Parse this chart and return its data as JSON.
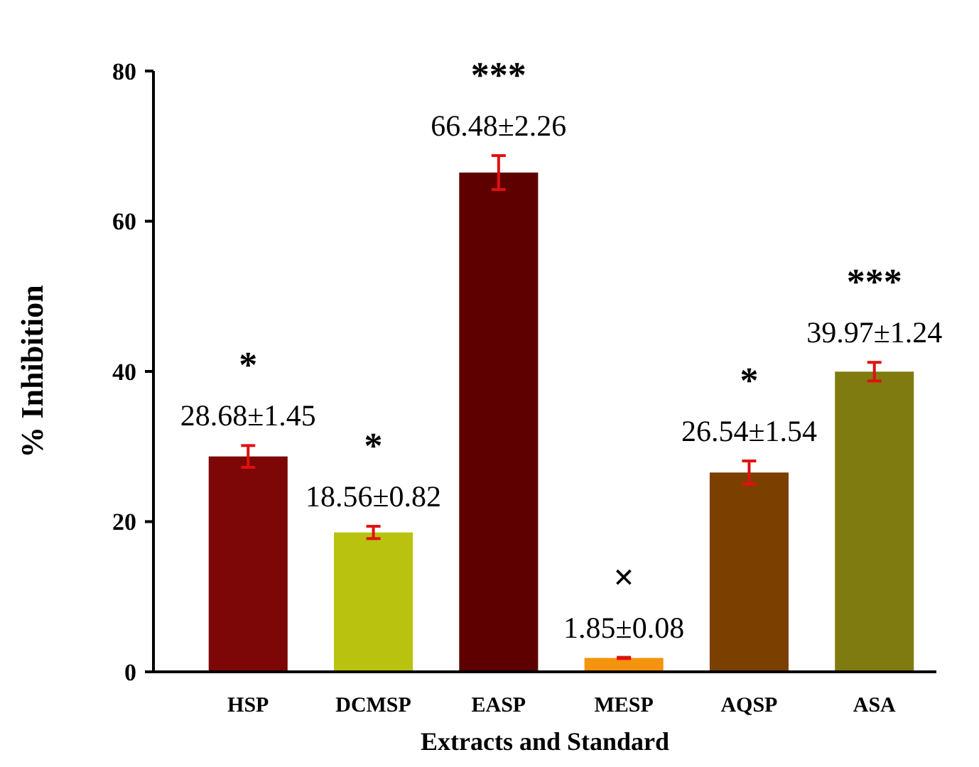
{
  "chart_data": {
    "type": "bar",
    "xlabel": "Extracts and Standard",
    "ylabel": "% Inhibition",
    "categories": [
      "HSP",
      "DCMSP",
      "EASP",
      "MESP",
      "AQSP",
      "ASA"
    ],
    "values": [
      28.68,
      18.56,
      66.48,
      1.85,
      26.54,
      39.97
    ],
    "errors": [
      1.45,
      0.82,
      2.26,
      0.08,
      1.54,
      1.24
    ],
    "colors": [
      "#7d0606",
      "#b9c30f",
      "#5e0000",
      "#f5920f",
      "#7b3f00",
      "#7f7b10"
    ],
    "value_labels": [
      "28.68±1.45",
      "18.56±0.82",
      "66.48±2.26",
      "1.85±0.08",
      "26.54±1.54",
      "39.97±1.24"
    ],
    "annotations": [
      "*",
      "*",
      "***",
      "×",
      "*",
      "***"
    ],
    "ylim": [
      0,
      80
    ],
    "yticks": [
      0,
      20,
      40,
      60,
      80
    ]
  }
}
